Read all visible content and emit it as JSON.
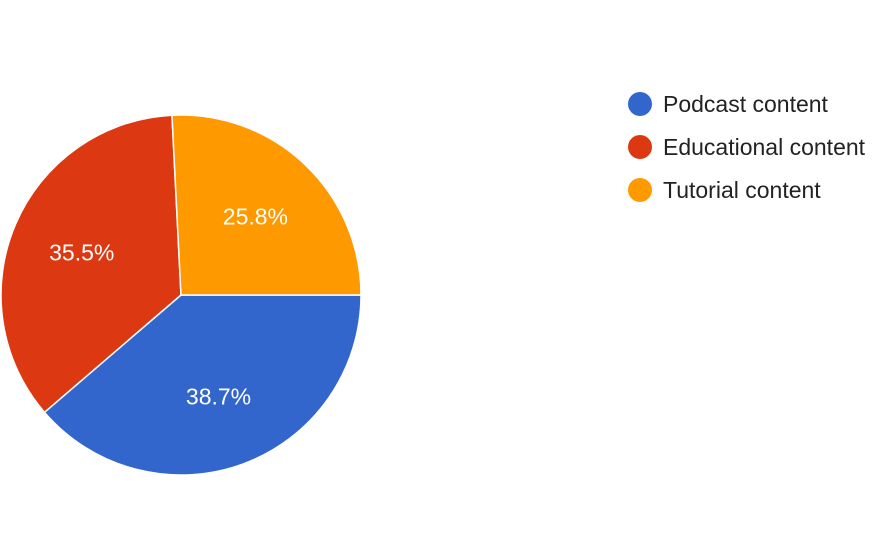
{
  "chart_data": {
    "type": "pie",
    "series": [
      {
        "name": "Podcast content",
        "value": 38.7,
        "label": "38.7%",
        "color": "#3366cc"
      },
      {
        "name": "Educational content",
        "value": 35.5,
        "label": "35.5%",
        "color": "#dc3912"
      },
      {
        "name": "Tutorial content",
        "value": 25.8,
        "label": "25.8%",
        "color": "#ff9900"
      }
    ],
    "legend_position": "right",
    "start_angle": "3 o'clock, clockwise"
  }
}
